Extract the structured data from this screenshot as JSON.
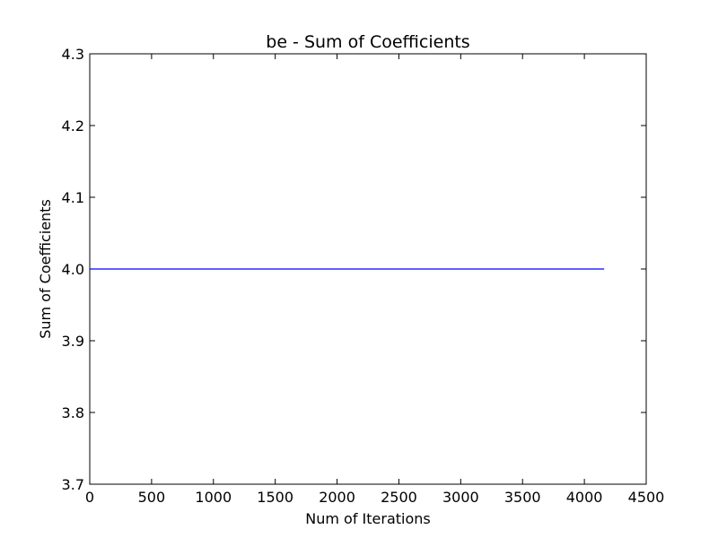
{
  "chart_data": {
    "type": "line",
    "title": "be - Sum of Coefficients",
    "xlabel": "Num of Iterations",
    "ylabel": "Sum of Coefficients",
    "xlim": [
      0,
      4500
    ],
    "ylim": [
      3.7,
      4.3
    ],
    "xticks": [
      "0",
      "500",
      "1000",
      "1500",
      "2000",
      "2500",
      "3000",
      "3500",
      "4000",
      "4500"
    ],
    "yticks": [
      "3.7",
      "3.8",
      "3.9",
      "4.0",
      "4.1",
      "4.2",
      "4.3"
    ],
    "grid": false,
    "series": [
      {
        "color": "#0000ff",
        "x": [
          0,
          4160
        ],
        "y": [
          4.0,
          4.0
        ]
      }
    ]
  }
}
